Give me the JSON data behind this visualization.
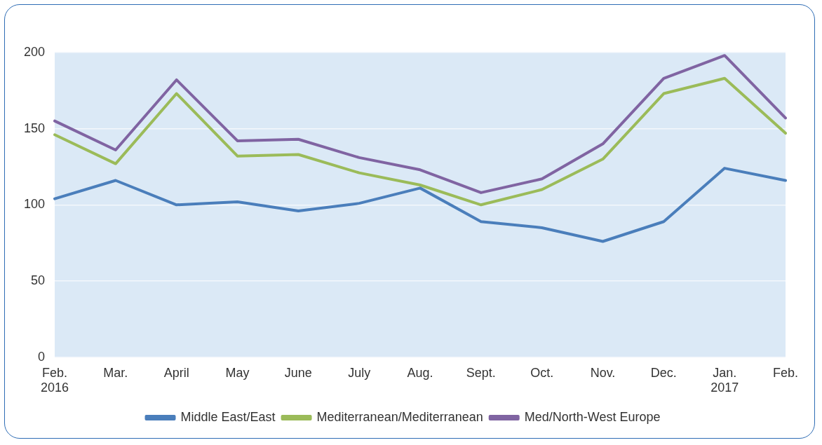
{
  "chart_data": {
    "type": "line",
    "categories": [
      "Feb.\n2016",
      "Mar.",
      "April",
      "May",
      "June",
      "July",
      "Aug.",
      "Sept.",
      "Oct.",
      "Nov.",
      "Dec.",
      "Jan.\n2017",
      "Feb."
    ],
    "series": [
      {
        "name": "Middle East/East",
        "color": "#4a7ebb",
        "values": [
          104,
          116,
          100,
          102,
          96,
          101,
          111,
          89,
          85,
          76,
          89,
          124,
          116
        ]
      },
      {
        "name": "Mediterranean/Mediterranean",
        "color": "#9bbb59",
        "values": [
          146,
          127,
          173,
          132,
          133,
          121,
          113,
          100,
          110,
          130,
          173,
          183,
          147
        ]
      },
      {
        "name": "Med/North-West Europe",
        "color": "#8064a2",
        "values": [
          155,
          136,
          182,
          142,
          143,
          131,
          123,
          108,
          117,
          140,
          183,
          198,
          157
        ]
      }
    ],
    "ylim": [
      0,
      200
    ],
    "yticks": [
      0,
      50,
      100,
      150,
      200
    ],
    "grid": "y",
    "legend": "bottom",
    "marker": "none",
    "line_style": "solid"
  }
}
